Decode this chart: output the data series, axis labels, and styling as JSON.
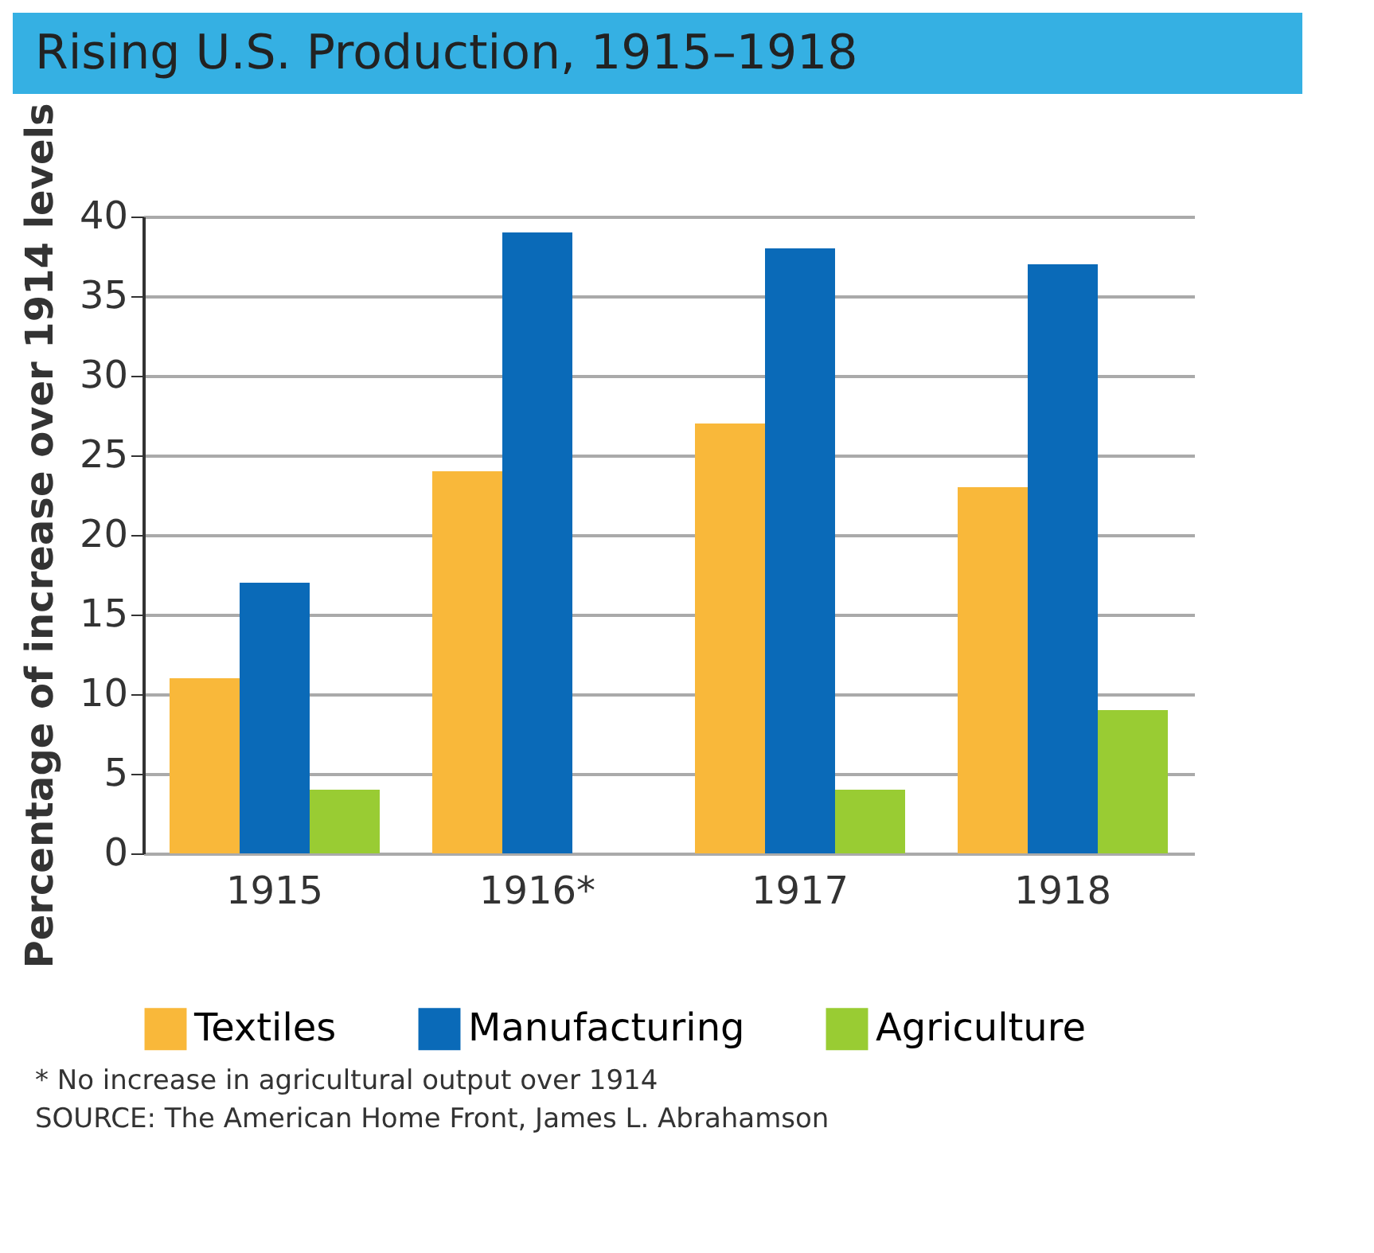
{
  "chart_data": {
    "type": "bar",
    "title": "Rising U.S. Production, 1915–1918",
    "ylabel": "Percentage of increase over 1914 levels",
    "categories": [
      "1915",
      "1916*",
      "1917",
      "1918"
    ],
    "series": [
      {
        "name": "Textiles",
        "color": "#f9b83a",
        "values": [
          11,
          24,
          27,
          23
        ]
      },
      {
        "name": "Manufacturing",
        "color": "#0a6ab8",
        "values": [
          17,
          39,
          38,
          37
        ]
      },
      {
        "name": "Agriculture",
        "color": "#99cc33",
        "values": [
          4,
          0,
          4,
          9
        ]
      }
    ],
    "ylim": [
      0,
      40
    ],
    "yticks": [
      0,
      5,
      10,
      15,
      20,
      25,
      30,
      35,
      40
    ],
    "grid": "y",
    "legend": "bottom",
    "annotations": [
      "* No increase in agricultural output over 1914",
      "SOURCE: The American Home Front, James L. Abrahamson"
    ]
  }
}
